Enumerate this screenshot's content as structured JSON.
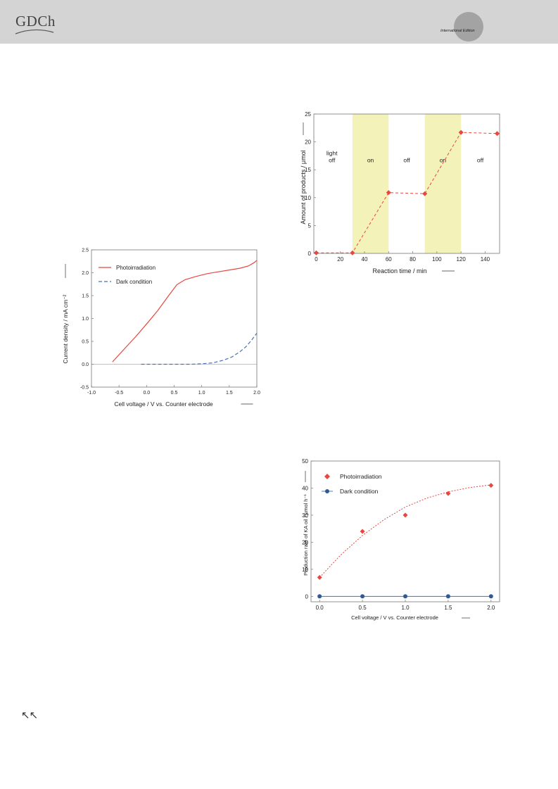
{
  "header": {
    "logo": "GDCh",
    "edition": "International Edition",
    "colors": {
      "bar": "#d4d4d4",
      "circle": "#a3a3a3"
    }
  },
  "footer": {
    "corner_glyph": "↖↖"
  },
  "chart_data": [
    {
      "id": "jv",
      "type": "line",
      "xlabel": "Cell voltage / V vs. Counter electrode",
      "ylabel": "Current density / mA cm⁻²",
      "xlim": [
        -1.0,
        2.0
      ],
      "ylim": [
        -0.5,
        2.5
      ],
      "xticks": [
        "-1.0",
        "-0.5",
        "0.0",
        "0.5",
        "1.0",
        "1.5",
        "2.0"
      ],
      "yticks": [
        "-0.5",
        "0.0",
        "0.5",
        "1.0",
        "1.5",
        "2.0",
        "2.5"
      ],
      "legend_position": "top-left",
      "series": [
        {
          "name": "Photoirradiation",
          "color": "#e8473f",
          "style": "solid",
          "x": [
            -0.62,
            -0.4,
            -0.2,
            0.0,
            0.2,
            0.4,
            0.55,
            0.7,
            0.9,
            1.1,
            1.3,
            1.5,
            1.7,
            1.85,
            1.95,
            2.0
          ],
          "y": [
            0.05,
            0.34,
            0.6,
            0.88,
            1.17,
            1.5,
            1.74,
            1.85,
            1.92,
            1.98,
            2.02,
            2.06,
            2.1,
            2.15,
            2.22,
            2.27
          ]
        },
        {
          "name": "Dark condition",
          "color": "#4a6fb5",
          "style": "dashed",
          "x": [
            -0.1,
            0.2,
            0.5,
            0.8,
            1.0,
            1.2,
            1.4,
            1.55,
            1.7,
            1.8,
            1.9,
            2.0
          ],
          "y": [
            0.0,
            0.0,
            0.0,
            0.0,
            0.01,
            0.03,
            0.09,
            0.16,
            0.28,
            0.38,
            0.52,
            0.68
          ]
        }
      ]
    },
    {
      "id": "time",
      "type": "line",
      "xlabel": "Reaction time / min",
      "ylabel": "Amount of products / μmol",
      "xlim": [
        -2,
        152
      ],
      "ylim": [
        0,
        25
      ],
      "xticks": [
        "0",
        "20",
        "40",
        "60",
        "80",
        "100",
        "120",
        "140"
      ],
      "yticks": [
        "0",
        "5",
        "10",
        "15",
        "20",
        "25"
      ],
      "light_on_intervals": [
        [
          30,
          60
        ],
        [
          90,
          120
        ]
      ],
      "shade_color": "#f3f2b8",
      "region_labels": [
        {
          "x": 13,
          "lines": [
            "light",
            "off"
          ]
        },
        {
          "x": 45,
          "lines": [
            "on"
          ]
        },
        {
          "x": 75,
          "lines": [
            "off"
          ]
        },
        {
          "x": 105,
          "lines": [
            "on"
          ]
        },
        {
          "x": 136,
          "lines": [
            "off"
          ]
        }
      ],
      "series": [
        {
          "name": "",
          "color": "#e8473f",
          "style": "dashed",
          "x": [
            0,
            30,
            60,
            90,
            120,
            150
          ],
          "y": [
            0.1,
            0.1,
            10.9,
            10.7,
            21.7,
            21.5
          ]
        }
      ]
    },
    {
      "id": "rate",
      "type": "scatter",
      "xlabel": "Cell voltage / V vs. Counter electrode",
      "ylabel": "Production rate of KA oil / μmol h⁻¹",
      "xlim": [
        -0.1,
        2.1
      ],
      "ylim": [
        -2,
        50
      ],
      "xticks": [
        "0.0",
        "0.5",
        "1.0",
        "1.5",
        "2.0"
      ],
      "yticks": [
        "0",
        "10",
        "20",
        "30",
        "40",
        "50"
      ],
      "legend_position": "top-left",
      "series": [
        {
          "name": "Photoirradiation",
          "color": "#e8473f",
          "marker": "diamond",
          "x": [
            0.0,
            0.5,
            1.0,
            1.5,
            2.0
          ],
          "y": [
            7,
            24,
            30,
            38,
            41
          ],
          "fit": {
            "x": [
              0.0,
              0.25,
              0.5,
              0.75,
              1.0,
              1.25,
              1.5,
              1.75,
              2.0
            ],
            "y": [
              7,
              15.4,
              22.5,
              28.3,
              33,
              36.3,
              38.6,
              40.2,
              41.2
            ]
          }
        },
        {
          "name": "Dark condition",
          "color": "#2f5a9a",
          "marker": "circle",
          "x": [
            0.0,
            0.5,
            1.0,
            1.5,
            2.0
          ],
          "y": [
            0,
            0,
            0,
            0,
            0
          ]
        }
      ]
    }
  ]
}
